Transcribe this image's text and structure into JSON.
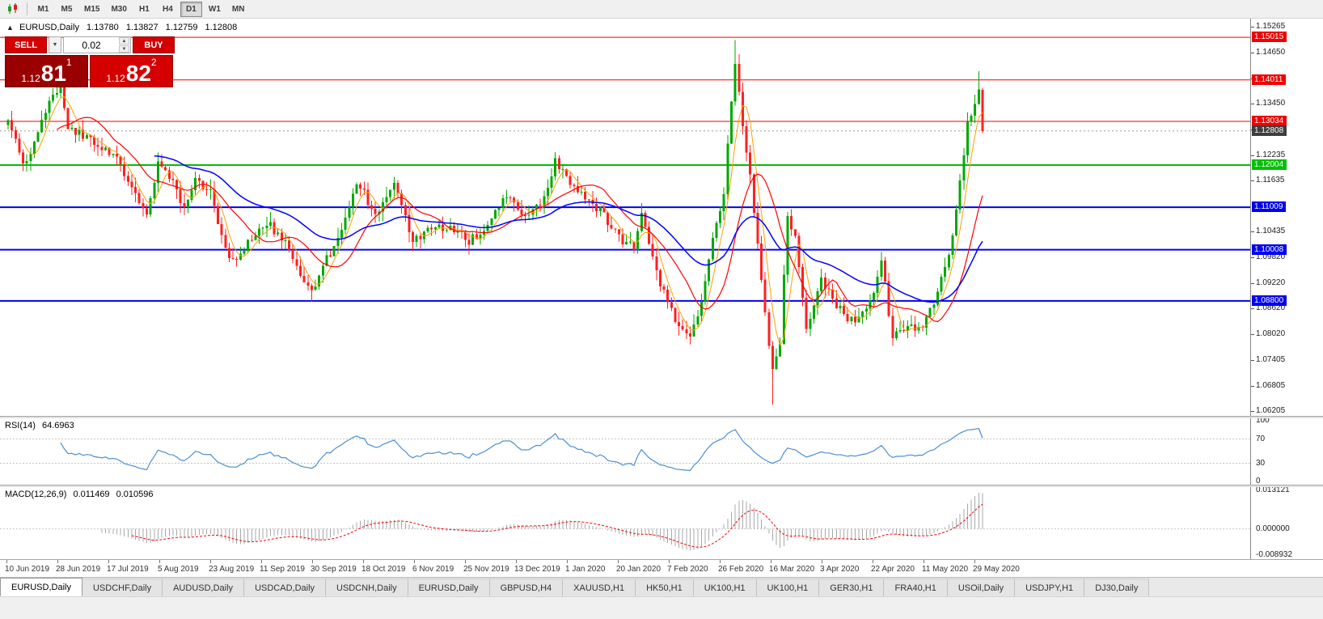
{
  "toolbar": {
    "chart_icon": "candlestick-chart-icon",
    "timeframes": [
      "M1",
      "M5",
      "M15",
      "M30",
      "H1",
      "H4",
      "D1",
      "W1",
      "MN"
    ],
    "active_timeframe": "D1"
  },
  "chart_header": {
    "collapse_icon": "collapse-arrow-icon",
    "symbol": "EURUSD,Daily",
    "open": "1.13780",
    "high": "1.13827",
    "low": "1.12759",
    "close": "1.12808"
  },
  "trade_panel": {
    "sell_label": "SELL",
    "buy_label": "BUY",
    "volume": "0.02",
    "bid": {
      "prefix": "1.12",
      "big": "81",
      "sup": "1"
    },
    "ask": {
      "prefix": "1.12",
      "big": "82",
      "sup": "2"
    }
  },
  "price_axis": {
    "labels": [
      "1.15265",
      "1.14650",
      "1.14035",
      "1.13450",
      "1.12835",
      "1.12235",
      "1.11635",
      "1.10435",
      "1.09820",
      "1.09220",
      "1.08620",
      "1.08020",
      "1.07405",
      "1.06805",
      "1.06205"
    ]
  },
  "current_price": {
    "label": "1.12808",
    "value": 1.12808,
    "box_color": "#3e3e3e"
  },
  "rsi_panel": {
    "name": "RSI(14)",
    "value": "64.6963",
    "line_color": "#4a90d2",
    "axis_labels": [
      {
        "label": "100",
        "value": 100
      },
      {
        "label": "70",
        "value": 70
      },
      {
        "label": "30",
        "value": 30
      },
      {
        "label": "0",
        "value": 0
      }
    ]
  },
  "macd_panel": {
    "name": "MACD(12,26,9)",
    "macd_value": "0.011469",
    "signal_value": "0.010596",
    "axis_labels": [
      {
        "label": "0.013121",
        "value": 0.013121
      },
      {
        "label": "0.000000",
        "value": 0
      },
      {
        "label": "-0.008932",
        "value": -0.008932
      }
    ]
  },
  "date_axis": {
    "labels": [
      "10 Jun 2019",
      "28 Jun 2019",
      "17 Jul 2019",
      "5 Aug 2019",
      "23 Aug 2019",
      "11 Sep 2019",
      "30 Sep 2019",
      "18 Oct 2019",
      "6 Nov 2019",
      "25 Nov 2019",
      "13 Dec 2019",
      "1 Jan 2020",
      "20 Jan 2020",
      "7 Feb 2020",
      "26 Feb 2020",
      "16 Mar 2020",
      "3 Apr 2020",
      "22 Apr 2020",
      "11 May 2020",
      "29 May 2020"
    ]
  },
  "bottom_tabs": [
    {
      "label": "EURUSD,Daily",
      "active": true
    },
    {
      "label": "USDCHF,Daily"
    },
    {
      "label": "AUDUSD,Daily"
    },
    {
      "label": "USDCAD,Daily"
    },
    {
      "label": "USDCNH,Daily"
    },
    {
      "label": "EURUSD,Daily"
    },
    {
      "label": "GBPUSD,H4"
    },
    {
      "label": "XAUUSD,H1"
    },
    {
      "label": "HK50,H1"
    },
    {
      "label": "UK100,H1"
    },
    {
      "label": "UK100,H1"
    },
    {
      "label": "GER30,H1"
    },
    {
      "label": "FRA40,H1"
    },
    {
      "label": "USOil,Daily"
    },
    {
      "label": "USDJPY,H1"
    },
    {
      "label": "DJ30,Daily"
    }
  ],
  "chart_data": {
    "type": "candlestick",
    "symbol": "EURUSD",
    "timeframe": "Daily",
    "num_candles": 261,
    "price_range": {
      "top": 1.15265,
      "bottom": 1.06205
    },
    "last_bar": {
      "open": 1.1378,
      "high": 1.13827,
      "low": 1.12759,
      "close": 1.12808
    },
    "up_color": "#00a800",
    "down_color": "#ff2020",
    "close_path_anchors": [
      [
        0,
        1.1315
      ],
      [
        4,
        1.121
      ],
      [
        6,
        1.1225
      ],
      [
        9,
        1.13
      ],
      [
        12,
        1.1375
      ],
      [
        14,
        1.1385
      ],
      [
        16,
        1.1285
      ],
      [
        20,
        1.1272
      ],
      [
        24,
        1.1248
      ],
      [
        29,
        1.121
      ],
      [
        33,
        1.1155
      ],
      [
        37,
        1.1078
      ],
      [
        40,
        1.12
      ],
      [
        43,
        1.1175
      ],
      [
        47,
        1.1095
      ],
      [
        50,
        1.1165
      ],
      [
        54,
        1.114
      ],
      [
        58,
        1.0995
      ],
      [
        61,
        1.097
      ],
      [
        65,
        1.103
      ],
      [
        69,
        1.1068
      ],
      [
        74,
        1.1015
      ],
      [
        78,
        1.0945
      ],
      [
        81,
        1.0905
      ],
      [
        85,
        1.098
      ],
      [
        89,
        1.104
      ],
      [
        93,
        1.1165
      ],
      [
        98,
        1.1082
      ],
      [
        103,
        1.116
      ],
      [
        108,
        1.1025
      ],
      [
        113,
        1.105
      ],
      [
        118,
        1.1058
      ],
      [
        123,
        1.1018
      ],
      [
        128,
        1.1062
      ],
      [
        133,
        1.113
      ],
      [
        138,
        1.108
      ],
      [
        143,
        1.1125
      ],
      [
        146,
        1.121
      ],
      [
        150,
        1.1158
      ],
      [
        154,
        1.1118
      ],
      [
        158,
        1.1092
      ],
      [
        163,
        1.1028
      ],
      [
        167,
        1.1005
      ],
      [
        169,
        1.109
      ],
      [
        173,
        1.0948
      ],
      [
        178,
        1.0832
      ],
      [
        182,
        1.0792
      ],
      [
        185,
        1.0885
      ],
      [
        188,
        1.1025
      ],
      [
        191,
        1.114
      ],
      [
        194,
        1.1445
      ],
      [
        196,
        1.1285
      ],
      [
        198,
        1.118
      ],
      [
        201,
        1.093
      ],
      [
        204,
        1.071
      ],
      [
        206,
        1.0785
      ],
      [
        208,
        1.1085
      ],
      [
        210,
        1.103
      ],
      [
        213,
        1.0812
      ],
      [
        217,
        1.0932
      ],
      [
        221,
        1.0872
      ],
      [
        226,
        1.0822
      ],
      [
        230,
        1.0872
      ],
      [
        233,
        1.0978
      ],
      [
        236,
        1.0792
      ],
      [
        240,
        1.0822
      ],
      [
        244,
        1.0812
      ],
      [
        248,
        1.0902
      ],
      [
        251,
        1.0982
      ],
      [
        253,
        1.1102
      ],
      [
        256,
        1.1292
      ],
      [
        258,
        1.1345
      ],
      [
        259,
        1.1378
      ],
      [
        260,
        1.12808
      ]
    ],
    "extreme_overrides": {
      "13": {
        "high": 1.1412
      },
      "81": {
        "low": 1.0879
      },
      "182": {
        "low": 1.0778
      },
      "194": {
        "high": 1.1495
      },
      "204": {
        "low": 1.0636
      },
      "259": {
        "high": 1.1422
      },
      "260": {
        "open": 1.1378,
        "high": 1.13827,
        "low": 1.12759,
        "close": 1.12808
      }
    },
    "moving_averages": [
      {
        "period": 5,
        "type": "sma",
        "color": "#ffa000",
        "width": 1
      },
      {
        "period": 14,
        "type": "sma",
        "color": "#ff0000",
        "width": 1.2
      },
      {
        "period": 40,
        "type": "ema",
        "color": "#0000ff",
        "width": 1.5
      }
    ],
    "horizontal_levels": [
      {
        "label": "1.15015",
        "value": 1.15015,
        "color": "#f00000",
        "line_width": 1
      },
      {
        "label": "1.14011",
        "value": 1.14011,
        "color": "#f00000",
        "line_width": 1
      },
      {
        "label": "1.13034",
        "value": 1.13034,
        "color": "#f00000",
        "line_width": 1
      },
      {
        "label": "1.12004",
        "value": 1.12004,
        "color": "#00c000",
        "line_width": 2
      },
      {
        "label": "1.11009",
        "value": 1.11009,
        "color": "#0000f0",
        "line_width": 2
      },
      {
        "label": "1.10008",
        "value": 1.10008,
        "color": "#0000f0",
        "line_width": 2
      },
      {
        "label": "1.08800",
        "value": 1.088,
        "color": "#0000f0",
        "line_width": 2
      }
    ],
    "rsi": {
      "period": 14,
      "current": 64.6963,
      "overbought": 70,
      "oversold": 30
    },
    "macd": {
      "fast": 12,
      "slow": 26,
      "signal": 9,
      "current_macd": 0.011469,
      "current_signal": 0.010596
    }
  }
}
